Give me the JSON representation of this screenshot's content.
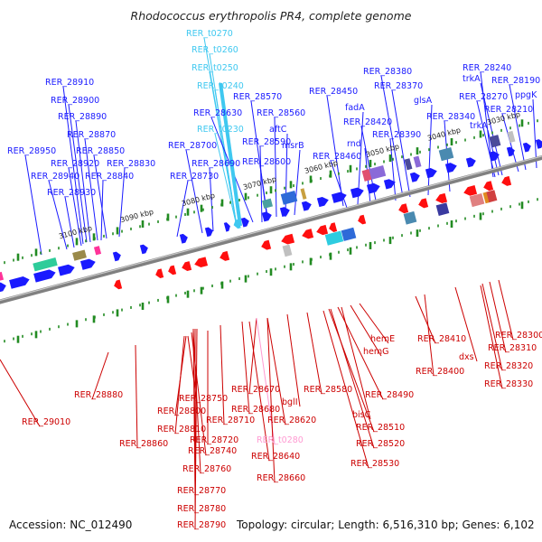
{
  "title": "Rhodococcus erythropolis PR4, complete genome",
  "footer": {
    "accession": "Accession: NC_012490",
    "topology": "Topology: circular; Length: 6,516,310 bp; Genes: 6,102"
  },
  "colors": {
    "forward": "#1a1aff",
    "reverse": "#ff0f0f",
    "trna_forward": "#3fc8f0",
    "trna_reverse": "#ff9ad2",
    "backbone": "#808080",
    "tick": "#228b22"
  },
  "kbp_ticks": [
    {
      "label": "3100 kbp"
    },
    {
      "label": "3090 kbp"
    },
    {
      "label": "3080 kbp"
    },
    {
      "label": "3070 kbp"
    },
    {
      "label": "3060 kbp"
    },
    {
      "label": "3050 kbp"
    },
    {
      "label": "3040 kbp"
    },
    {
      "label": "3030 kbp"
    }
  ],
  "forward_labels": [
    "RER_t0270",
    "RER_t0260",
    "RER_t0250",
    "RER_t0240",
    "RER_t0230",
    "RER_28910",
    "RER_28900",
    "RER_28890",
    "RER_28870",
    "RER_28850",
    "RER_28950",
    "RER_28920",
    "RER_28830",
    "RER_28940",
    "RER_28840",
    "RER_28930",
    "RER_28700",
    "RER_28690",
    "RER_28730",
    "RER_28630",
    "RER_28570",
    "RER_28560",
    "aftC",
    "RER_28590",
    "msrB",
    "RER_28600",
    "RER_28450",
    "fadA",
    "RER_28380",
    "RER_28370",
    "glsA",
    "RER_28420",
    "RER_28390",
    "rnd",
    "RER_28460",
    "RER_28340",
    "RER_28240",
    "trkA",
    "RER_28190",
    "RER_28270",
    "ppgK",
    "RER_28210",
    "trkA"
  ],
  "reverse_labels": [
    "RER_29010",
    "RER_28880",
    "RER_28860",
    "RER_28750",
    "RER_28800",
    "RER_28810",
    "RER_28740",
    "RER_28720",
    "RER_28760",
    "RER_28770",
    "RER_28780",
    "RER_28790",
    "RER_28670",
    "RER_28680",
    "RER_28710",
    "RER_28620",
    "RER_t0280",
    "RER_28640",
    "RER_28660",
    "RER_28580",
    "bglI",
    "RER_28490",
    "RER_28510",
    "bisC",
    "RER_28520",
    "RER_28530",
    "hemE",
    "hemG",
    "RER_28410",
    "RER_28400",
    "dxs",
    "RER_28300",
    "RER_28310",
    "RER_28320",
    "RER_28330"
  ]
}
